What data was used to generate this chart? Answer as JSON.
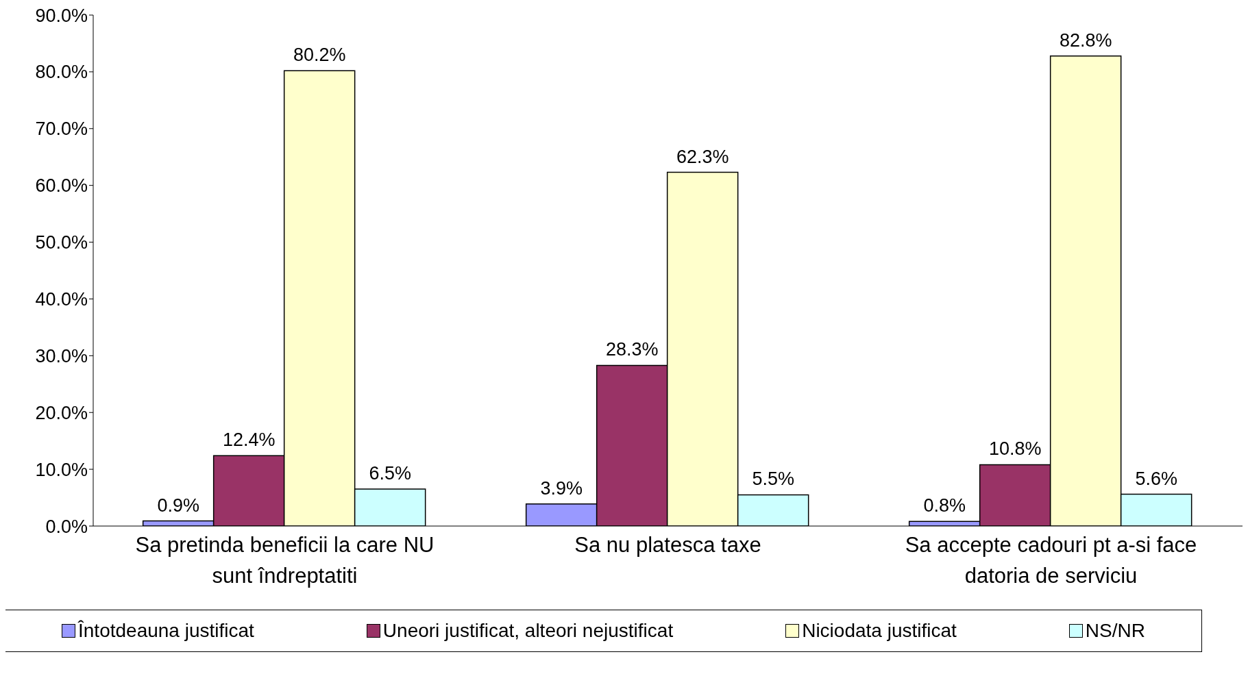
{
  "chart_data": {
    "type": "bar",
    "categories": [
      "Sa pretinda beneficii la care NU sunt îndreptatiti",
      "Sa nu platesca taxe",
      "Sa accepte cadouri pt a-si face datoria de serviciu"
    ],
    "series": [
      {
        "name": "Întotdeauna justificat",
        "color": "#9999ff",
        "values": [
          0.9,
          3.9,
          0.8
        ],
        "value_labels": [
          "0.9%",
          "3.9%",
          "0.8%"
        ]
      },
      {
        "name": "Uneori justificat, alteori nejustificat",
        "color": "#993366",
        "values": [
          12.4,
          28.3,
          10.8
        ],
        "value_labels": [
          "12.4%",
          "28.3%",
          "10.8%"
        ]
      },
      {
        "name": "Niciodata justificat",
        "color": "#ffffcc",
        "values": [
          80.2,
          62.3,
          82.8
        ],
        "value_labels": [
          "80.2%",
          "62.3%",
          "82.8%"
        ]
      },
      {
        "name": "NS/NR",
        "color": "#ccffff",
        "values": [
          6.5,
          5.5,
          5.6
        ],
        "value_labels": [
          "6.5%",
          "5.5%",
          "5.6%"
        ]
      }
    ],
    "ylim": [
      0,
      90
    ],
    "yticks": [
      {
        "value": 0,
        "label": "0.0%"
      },
      {
        "value": 10,
        "label": "10.0%"
      },
      {
        "value": 20,
        "label": "20.0%"
      },
      {
        "value": 30,
        "label": "30.0%"
      },
      {
        "value": 40,
        "label": "40.0%"
      },
      {
        "value": 50,
        "label": "50.0%"
      },
      {
        "value": 60,
        "label": "60.0%"
      },
      {
        "value": 70,
        "label": "70.0%"
      },
      {
        "value": 80,
        "label": "80.0%"
      },
      {
        "value": 90,
        "label": "90.0%"
      }
    ],
    "legend": "bottom"
  }
}
